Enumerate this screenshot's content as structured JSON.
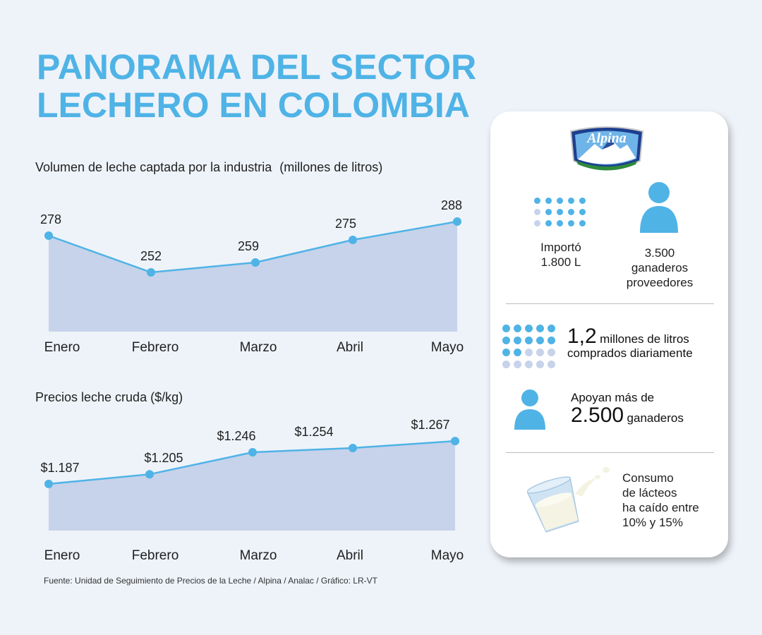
{
  "title": {
    "line1": "PANORAMA DEL SECTOR",
    "line2": "LECHERO EN COLOMBIA"
  },
  "colors": {
    "accent": "#4fb3e6",
    "area_fill": "#c6d3ea",
    "point": "#4fb3e6"
  },
  "chart_data": [
    {
      "type": "area",
      "title": "Volumen de leche captada por la industria",
      "unit": "(millones de litros)",
      "categories": [
        "Enero",
        "Febrero",
        "Marzo",
        "Abril",
        "Mayo"
      ],
      "values": [
        278,
        252,
        259,
        275,
        288
      ],
      "labels": [
        "278",
        "252",
        "259",
        "275",
        "288"
      ],
      "ylim": [
        210,
        300
      ]
    },
    {
      "type": "area",
      "title": "Precios leche cruda ($/kg)",
      "categories": [
        "Enero",
        "Febrero",
        "Marzo",
        "Abril",
        "Mayo"
      ],
      "values": [
        1187,
        1205,
        1246,
        1254,
        1267
      ],
      "labels": [
        "$1.187",
        "$1.205",
        "$1.246",
        "$1.254",
        "$1.267"
      ],
      "ylim": [
        1100,
        1300
      ]
    }
  ],
  "card": {
    "logo_text": "Alpina",
    "imported": {
      "line1": "Importó",
      "line2": "1.800 L"
    },
    "suppliers": {
      "line1": "3.500",
      "line2": "ganaderos",
      "line3": "proveedores"
    },
    "daily": {
      "number": "1,2",
      "text1": "millones de litros",
      "text2": "comprados diariamente"
    },
    "support": {
      "line1": "Apoyan más de",
      "number": "2.500",
      "text": "ganaderos"
    },
    "consumption": {
      "line1": "Consumo",
      "line2": "de lácteos",
      "line3": "ha caído entre",
      "line4": "10% y 15%"
    }
  },
  "source": "Fuente: Unidad de Seguimiento de Precios de la Leche / Alpina / Analac / Gráfico: LR-VT"
}
